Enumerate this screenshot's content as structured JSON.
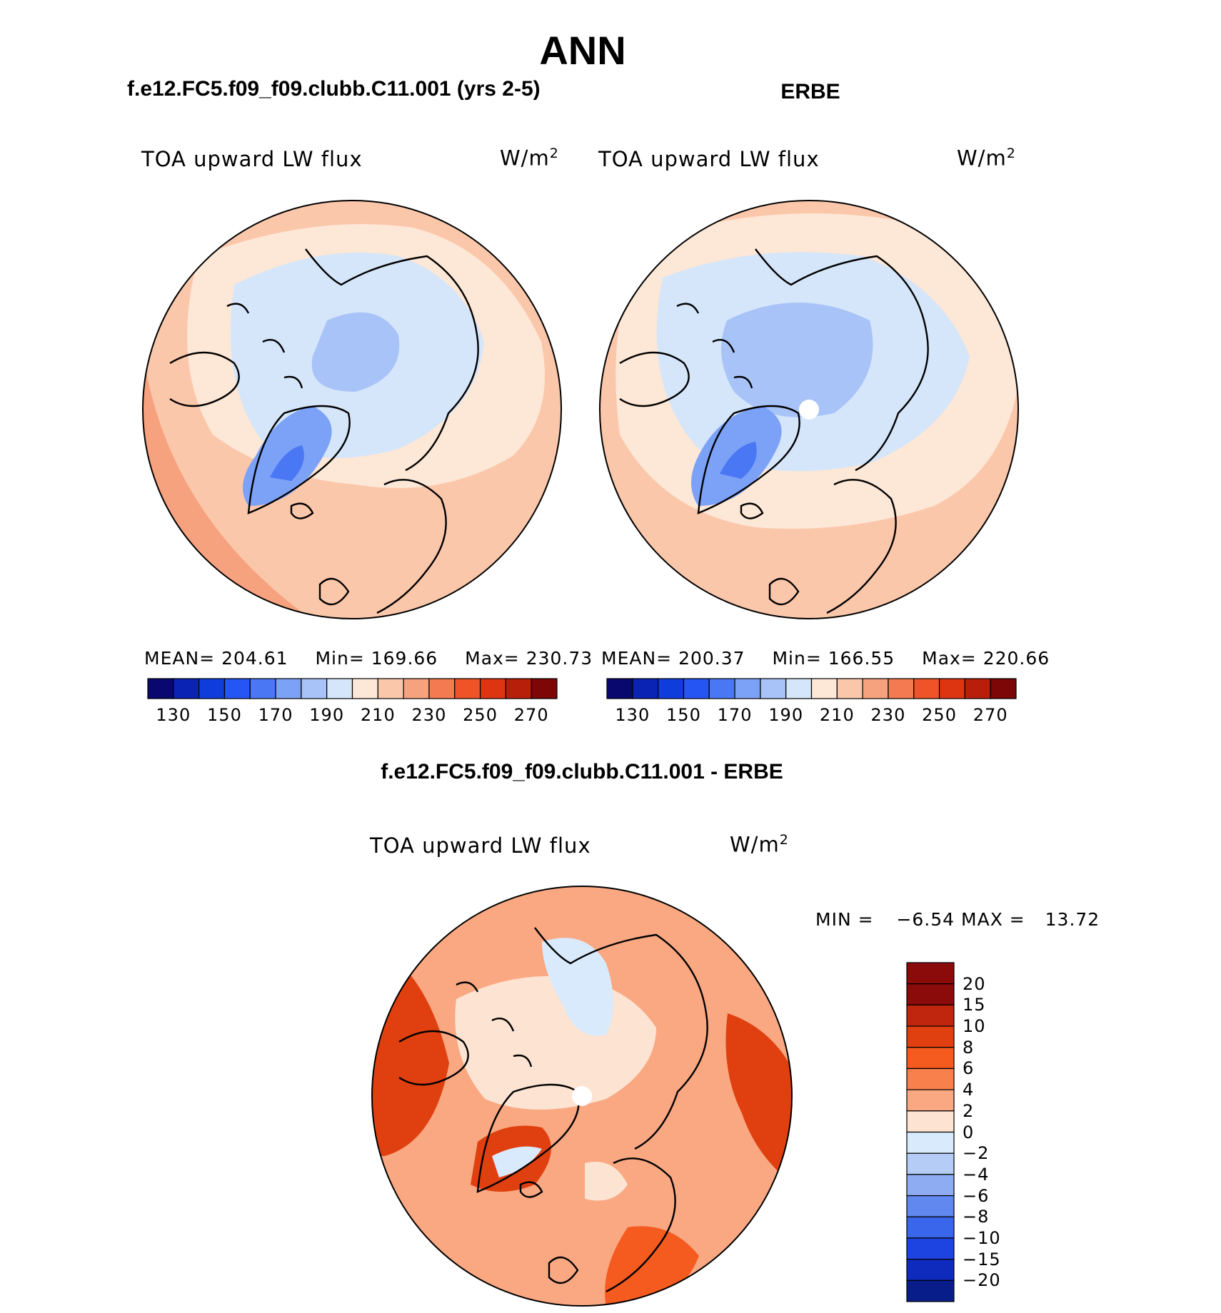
{
  "figure": {
    "title": "ANN",
    "left_panel_title": "f.e12.FC5.f09_f09.clubb.C11.001 (yrs 2-5)",
    "right_panel_title": "ERBE",
    "diff_panel_title": "f.e12.FC5.f09_f09.clubb.C11.001 - ERBE"
  },
  "chart_data": [
    {
      "type": "heatmap",
      "projection": "north polar stereographic",
      "variable": "TOA upward LW flux",
      "unit": "W/m",
      "unit_exp": "2",
      "stats": {
        "mean_label": "MEAN=",
        "mean": "204.61",
        "min_label": "Min=",
        "min": "169.66",
        "max_label": "Max=",
        "max": "230.73"
      },
      "colorbar": {
        "orientation": "horizontal",
        "levels": [
          130,
          140,
          150,
          160,
          170,
          180,
          190,
          200,
          210,
          220,
          230,
          240,
          250,
          260,
          270
        ],
        "tick_labels": [
          "130",
          "150",
          "170",
          "190",
          "210",
          "230",
          "250",
          "270"
        ],
        "colors": [
          "#08086e",
          "#0a23b4",
          "#0f3ddc",
          "#2555f2",
          "#4a78f5",
          "#7ca2f7",
          "#a8c3f8",
          "#d5e6fa",
          "#fde7d6",
          "#fbc7ab",
          "#f7a27f",
          "#f47a52",
          "#ef5327",
          "#dd3511",
          "#b71f0a",
          "#7d0606"
        ]
      }
    },
    {
      "type": "heatmap",
      "projection": "north polar stereographic",
      "variable": "TOA upward LW flux",
      "unit": "W/m",
      "unit_exp": "2",
      "stats": {
        "mean_label": "MEAN=",
        "mean": "200.37",
        "min_label": "Min=",
        "min": "166.55",
        "max_label": "Max=",
        "max": "220.66"
      },
      "colorbar": {
        "orientation": "horizontal",
        "levels": [
          130,
          140,
          150,
          160,
          170,
          180,
          190,
          200,
          210,
          220,
          230,
          240,
          250,
          260,
          270
        ],
        "tick_labels": [
          "130",
          "150",
          "170",
          "190",
          "210",
          "230",
          "250",
          "270"
        ],
        "colors": [
          "#08086e",
          "#0a23b4",
          "#0f3ddc",
          "#2555f2",
          "#4a78f5",
          "#7ca2f7",
          "#a8c3f8",
          "#d5e6fa",
          "#fde7d6",
          "#fbc7ab",
          "#f7a27f",
          "#f47a52",
          "#ef5327",
          "#dd3511",
          "#b71f0a",
          "#7d0606"
        ]
      }
    },
    {
      "type": "heatmap",
      "projection": "north polar stereographic",
      "variable": "TOA upward LW flux",
      "unit": "W/m",
      "unit_exp": "2",
      "stats": {
        "min_label": "MIN =",
        "min": "−6.54",
        "max_label": "MAX =",
        "max": "13.72"
      },
      "colorbar": {
        "orientation": "vertical",
        "levels": [
          "20",
          "15",
          "10",
          "8",
          "6",
          "4",
          "2",
          "0",
          "−2",
          "−4",
          "−6",
          "−8",
          "−10",
          "−15",
          "−20"
        ],
        "colors": [
          "#8b0a0a",
          "#c0250d",
          "#e0400f",
          "#f55a1f",
          "#f7804d",
          "#f9a882",
          "#fde3d2",
          "#d9eafc",
          "#b4ccf6",
          "#8eacf2",
          "#6088ef",
          "#3a66ec",
          "#1d43e0",
          "#0e2bbd",
          "#081d8a"
        ]
      }
    }
  ]
}
